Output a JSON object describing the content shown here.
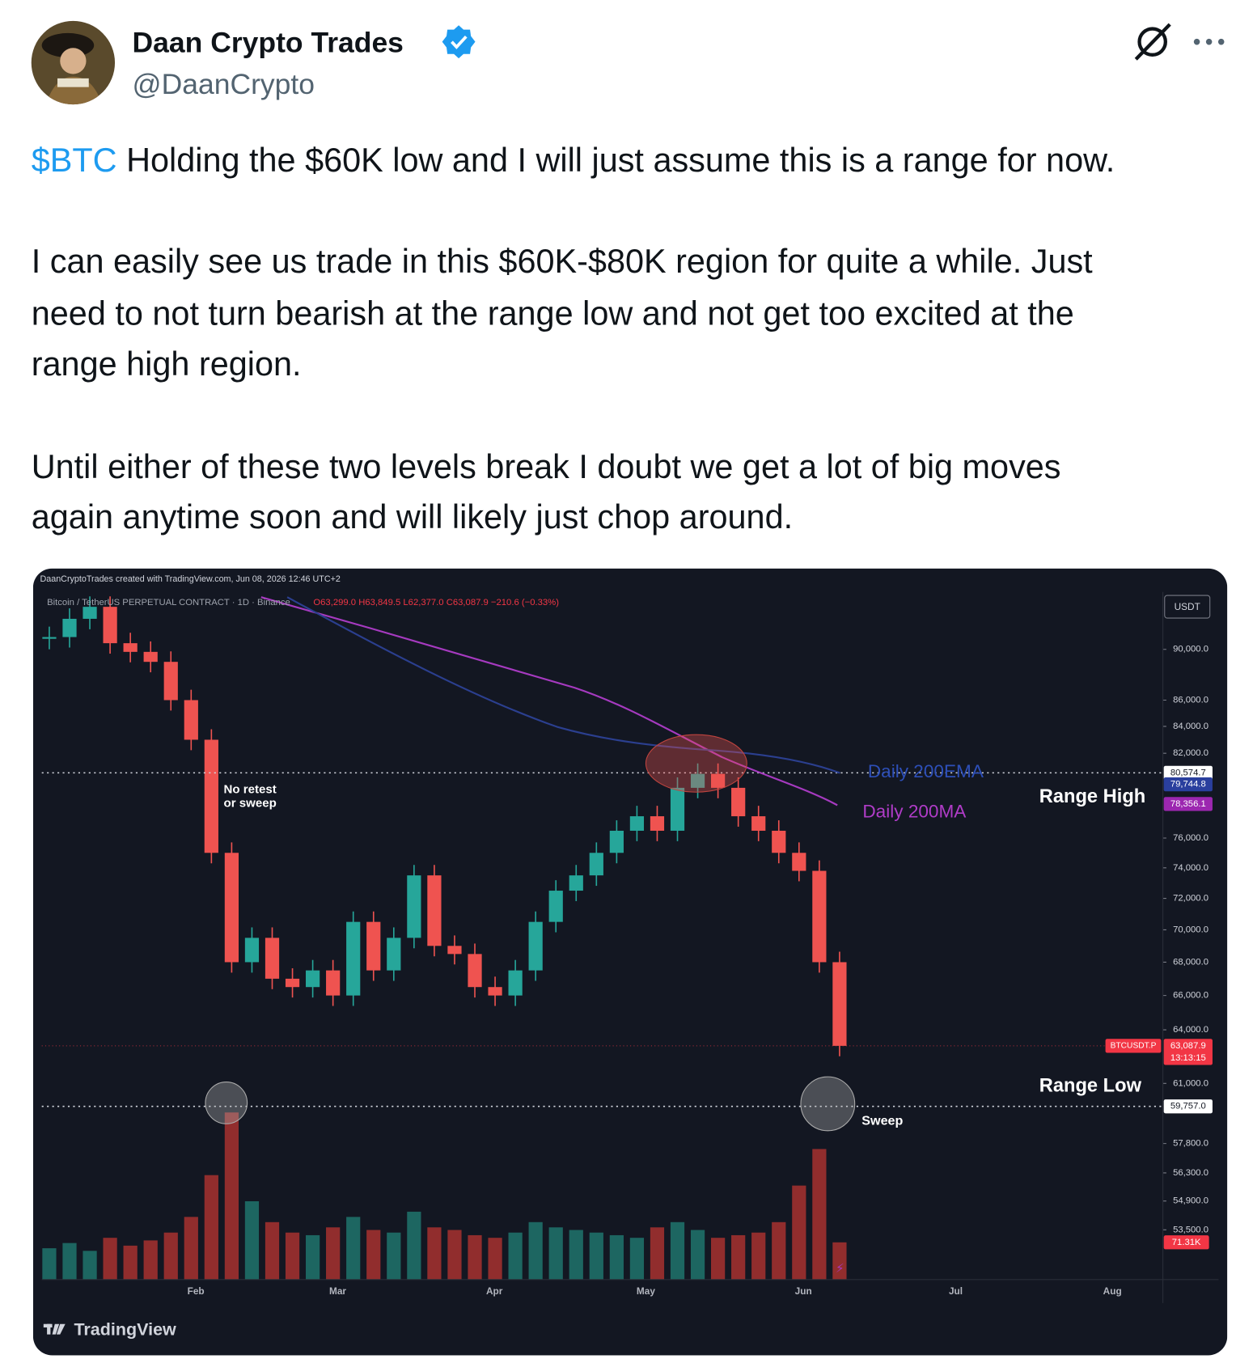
{
  "header": {
    "name": "Daan Crypto Trades",
    "handle": "@DaanCrypto"
  },
  "tweet": {
    "cashtag": "$BTC",
    "line1": " Holding the $60K low and I will just assume this is a range for now.",
    "paragraph2": [
      "I can easily see us trade in this $60K-$80K region for quite a while. Just",
      "need to not turn bearish at the range low and not get too excited at the",
      "range high region."
    ],
    "paragraph3": [
      "Until either of these two levels break I doubt we get a lot of big moves",
      "again anytime soon and will likely just chop around."
    ]
  },
  "chart_image": {
    "watermark": "DaanCryptoTrades created with TradingView.com, Jun 08, 2026 12:46 UTC+2",
    "symbol": "Bitcoin / TetherUS PERPETUAL CONTRACT · 1D · Binance",
    "ohlc": "O63,299.0  H63,849.5  L62,377.0  C63,087.9  −210.6 (−0.33%)",
    "currency": "USDT",
    "price_ticks": [
      {
        "value": 90000,
        "label": "90,000.0"
      },
      {
        "value": 86000,
        "label": "86,000.0"
      },
      {
        "value": 84000,
        "label": "84,000.0"
      },
      {
        "value": 82000,
        "label": "82,000.0"
      },
      {
        "value": 76000,
        "label": "76,000.0"
      },
      {
        "value": 74000,
        "label": "74,000.0"
      },
      {
        "value": 72000,
        "label": "72,000.0"
      },
      {
        "value": 70000,
        "label": "70,000.0"
      },
      {
        "value": 68000,
        "label": "68,000.0"
      },
      {
        "value": 66000,
        "label": "66,000.0"
      },
      {
        "value": 64000,
        "label": "64,000.0"
      },
      {
        "value": 61000,
        "label": "61,000.0"
      },
      {
        "value": 57800,
        "label": "57,800.0"
      },
      {
        "value": 56300,
        "label": "56,300.0"
      },
      {
        "value": 54900,
        "label": "54,900.0"
      },
      {
        "value": 53500,
        "label": "53,500.0"
      }
    ],
    "range_high_level": {
      "value": 80574.7,
      "label": "80,574.7"
    },
    "ema_level": {
      "value": 79744.8,
      "label": "79,744.8"
    },
    "ma_level": {
      "value": 78356.1,
      "label": "78,356.1"
    },
    "range_low_level": {
      "value": 59757.0,
      "label": "59,757.0"
    },
    "last_price": {
      "symbol": "BTCUSDT.P",
      "value": 63087.9,
      "label": "63,087.9",
      "countdown": "13:13:15"
    },
    "volume_label": "71.31K",
    "months": [
      "Feb",
      "Mar",
      "Apr",
      "May",
      "Jun",
      "Jul",
      "Aug"
    ],
    "closes": [
      91000,
      92500,
      93500,
      90500,
      89800,
      89000,
      86000,
      83000,
      75000,
      68000,
      69500,
      67000,
      66500,
      67500,
      66000,
      70500,
      67500,
      69500,
      73500,
      69000,
      68500,
      66500,
      66000,
      67500,
      70500,
      72500,
      73500,
      75000,
      76500,
      77500,
      76500,
      79500,
      80500,
      79500,
      77500,
      76500,
      75000,
      73800,
      68000,
      63087.9
    ],
    "volumes": [
      60,
      70,
      55,
      80,
      65,
      75,
      90,
      120,
      200,
      320,
      150,
      110,
      90,
      85,
      100,
      120,
      95,
      90,
      130,
      100,
      95,
      85,
      80,
      90,
      110,
      100,
      95,
      90,
      85,
      80,
      100,
      110,
      95,
      80,
      85,
      90,
      110,
      180,
      250,
      71.31
    ],
    "annotations": {
      "no_retest": [
        "No retest",
        "or sweep"
      ],
      "ema": "Daily 200EMA",
      "ma": "Daily 200MA",
      "range_high": "Range High",
      "range_low": "Range Low",
      "sweep": "Sweep"
    },
    "logo": "TradingView"
  }
}
